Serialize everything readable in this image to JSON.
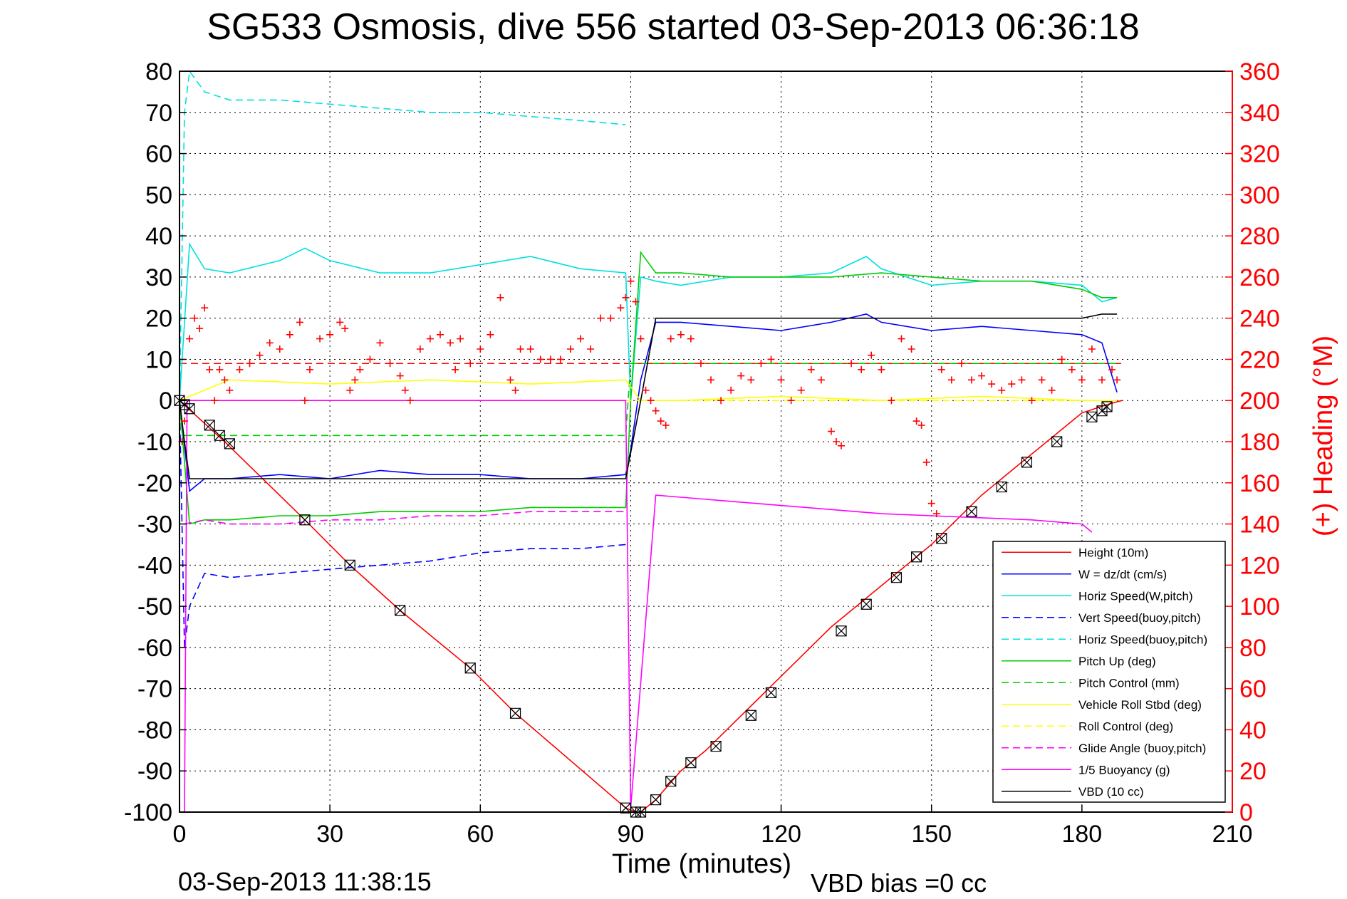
{
  "chart_data": {
    "type": "line",
    "title": "SG533 Osmosis, dive 556 started 03-Sep-2013 06:36:18",
    "xlabel": "Time (minutes)",
    "ylabel_right": "(+) Heading (°M)",
    "footer_left": "03-Sep-2013 11:38:15",
    "footer_right": "VBD bias =0 cc",
    "xlim": [
      0,
      210
    ],
    "ylim": [
      -100,
      80
    ],
    "ylim_right": [
      0,
      360
    ],
    "xticks": [
      "0",
      "30",
      "60",
      "90",
      "120",
      "150",
      "180",
      "210"
    ],
    "yticks_left": [
      "80",
      "70",
      "60",
      "50",
      "40",
      "30",
      "20",
      "10",
      "0",
      "-10",
      "-20",
      "-30",
      "-40",
      "-50",
      "-60",
      "-70",
      "-80",
      "-90",
      "-100"
    ],
    "yticks_right": [
      "360",
      "340",
      "320",
      "300",
      "280",
      "260",
      "240",
      "220",
      "200",
      "180",
      "160",
      "140",
      "120",
      "100",
      "80",
      "60",
      "40",
      "20",
      "0"
    ],
    "grid": true,
    "legend_position": "lower-right",
    "colors": {
      "red": "#ff0000",
      "blue": "#0000ff",
      "cyan": "#00e0e0",
      "green": "#00cc00",
      "yellow": "#ffff00",
      "magenta": "#ff00ff",
      "black": "#000000"
    },
    "series": [
      {
        "name": "Height (10m)",
        "color": "#ff0000",
        "style": "solid",
        "x": [
          0,
          9,
          25,
          34,
          44,
          58,
          67,
          89,
          91,
          92,
          95,
          100,
          105,
          110,
          115,
          120,
          130,
          140,
          150,
          160,
          170,
          180,
          185,
          188
        ],
        "y": [
          0,
          -10,
          -29,
          -40,
          -51,
          -65,
          -76,
          -99,
          -100,
          -100,
          -97,
          -90,
          -85,
          -79,
          -73,
          -67,
          -55,
          -45,
          -35,
          -23,
          -13,
          -3,
          -1,
          0
        ]
      },
      {
        "name": "W = dz/dt (cm/s)",
        "color": "#0000ff",
        "style": "solid",
        "x": [
          0,
          2,
          5,
          10,
          20,
          30,
          40,
          50,
          60,
          70,
          80,
          89,
          90,
          92,
          95,
          100,
          110,
          120,
          130,
          137,
          140,
          150,
          160,
          170,
          180,
          184,
          187
        ],
        "y": [
          0,
          -22,
          -19,
          -19,
          -18,
          -19,
          -17,
          -18,
          -18,
          -19,
          -19,
          -18,
          -12,
          5,
          19,
          19,
          18,
          17,
          19,
          21,
          19,
          17,
          18,
          17,
          16,
          14,
          2
        ]
      },
      {
        "name": "Horiz Speed(W,pitch)",
        "color": "#00e0e0",
        "style": "solid",
        "x": [
          0,
          2,
          5,
          10,
          20,
          25,
          30,
          40,
          50,
          60,
          70,
          80,
          89,
          90,
          92,
          95,
          100,
          110,
          120,
          130,
          137,
          140,
          150,
          160,
          170,
          180,
          184,
          187
        ],
        "y": [
          0,
          38,
          32,
          31,
          34,
          37,
          34,
          31,
          31,
          33,
          35,
          32,
          31,
          0,
          30,
          29,
          28,
          30,
          30,
          31,
          35,
          32,
          28,
          29,
          29,
          28,
          24,
          25
        ]
      },
      {
        "name": "Vert Speed(buoy,pitch)",
        "color": "#0000ff",
        "style": "dashed",
        "x": [
          0,
          1,
          2,
          5,
          10,
          20,
          30,
          40,
          50,
          60,
          70,
          80,
          89
        ],
        "y": [
          0,
          -60,
          -50,
          -42,
          -43,
          -42,
          -41,
          -40,
          -39,
          -37,
          -36,
          -36,
          -35
        ]
      },
      {
        "name": "Horiz Speed(buoy,pitch)",
        "color": "#00e0e0",
        "style": "dashed",
        "x": [
          0,
          1,
          2,
          5,
          10,
          20,
          30,
          40,
          50,
          60,
          70,
          80,
          89
        ],
        "y": [
          0,
          70,
          80,
          75,
          73,
          73,
          72,
          71,
          70,
          70,
          69,
          68,
          67
        ]
      },
      {
        "name": "Pitch Up (deg)",
        "color": "#00cc00",
        "style": "solid",
        "x": [
          0,
          2,
          5,
          10,
          20,
          30,
          40,
          50,
          60,
          70,
          80,
          89,
          90,
          92,
          95,
          100,
          110,
          120,
          130,
          140,
          150,
          160,
          170,
          180,
          184,
          187
        ],
        "y": [
          0,
          -30,
          -29,
          -29,
          -28,
          -28,
          -27,
          -27,
          -27,
          -26,
          -26,
          -26,
          0,
          36,
          31,
          31,
          30,
          30,
          30,
          31,
          30,
          29,
          29,
          27,
          25,
          25
        ]
      },
      {
        "name": "Pitch Control (mm)",
        "color": "#00cc00",
        "style": "dashed",
        "x": [
          1,
          89,
          90,
          187
        ],
        "y": [
          -8.5,
          -8.5,
          9,
          9
        ]
      },
      {
        "name": "Vehicle Roll Stbd (deg)",
        "color": "#ffff00",
        "style": "solid",
        "x": [
          0,
          10,
          30,
          50,
          70,
          89,
          92,
          100,
          120,
          140,
          160,
          180,
          187
        ],
        "y": [
          0,
          5,
          4,
          5,
          4,
          5,
          0,
          0,
          1,
          0,
          1,
          0,
          0
        ]
      },
      {
        "name": "Roll Control (deg)",
        "color": "#ffff00",
        "style": "dashed",
        "x": [
          0,
          89,
          92,
          187
        ],
        "y": [
          0,
          0,
          0,
          0
        ]
      },
      {
        "name": "Glide Angle (buoy,pitch)",
        "color": "#ff00ff",
        "style": "dashed",
        "x": [
          1,
          5,
          10,
          20,
          30,
          40,
          50,
          60,
          70,
          80,
          89
        ],
        "y": [
          -30,
          -29,
          -30,
          -30,
          -29,
          -29,
          -28,
          -28,
          -27,
          -27,
          -27
        ]
      },
      {
        "name": "1/5 Buoyancy (g)",
        "color": "#ff00ff",
        "style": "solid",
        "x": [
          1,
          1.5,
          89,
          90,
          95,
          100,
          110,
          120,
          130,
          140,
          150,
          160,
          170,
          180,
          182
        ],
        "y": [
          -100,
          0,
          0,
          -99,
          -23,
          -23.5,
          -24.5,
          -25.5,
          -26.5,
          -27.5,
          -28,
          -28.5,
          -29,
          -30,
          -32
        ]
      },
      {
        "name": "VBD (10 cc)",
        "color": "#000000",
        "style": "solid",
        "x": [
          0,
          1,
          2,
          10,
          30,
          50,
          70,
          89,
          92,
          95,
          100,
          120,
          140,
          160,
          180,
          184,
          187
        ],
        "y": [
          0,
          -10,
          -19,
          -19,
          -19,
          -19,
          -19,
          -19,
          0,
          20,
          20,
          20,
          20,
          20,
          20,
          21,
          21
        ]
      }
    ],
    "heading_series": {
      "name": "Heading (°M)",
      "color": "#ff0000",
      "marker": "+",
      "axis": "right",
      "x": [
        0.5,
        1,
        2,
        3,
        4,
        5,
        6,
        7,
        8,
        9,
        10,
        12,
        14,
        16,
        18,
        20,
        22,
        24,
        25,
        26,
        28,
        30,
        32,
        33,
        34,
        35,
        36,
        38,
        40,
        42,
        44,
        45,
        46,
        48,
        50,
        52,
        54,
        55,
        56,
        58,
        60,
        62,
        64,
        66,
        67,
        68,
        70,
        72,
        74,
        76,
        78,
        80,
        82,
        84,
        86,
        88,
        89,
        90,
        91,
        92,
        93,
        94,
        95,
        96,
        97,
        98,
        100,
        102,
        104,
        106,
        108,
        110,
        112,
        114,
        116,
        118,
        120,
        122,
        124,
        126,
        128,
        130,
        131,
        132,
        134,
        136,
        138,
        140,
        142,
        144,
        146,
        147,
        148,
        149,
        150,
        151,
        152,
        154,
        156,
        158,
        160,
        162,
        164,
        166,
        168,
        170,
        172,
        174,
        176,
        178,
        180,
        182,
        184,
        186,
        187
      ],
      "y": [
        180,
        190,
        230,
        240,
        235,
        245,
        215,
        200,
        215,
        210,
        205,
        215,
        218,
        222,
        228,
        225,
        232,
        238,
        200,
        215,
        230,
        232,
        238,
        235,
        205,
        210,
        215,
        220,
        228,
        218,
        212,
        205,
        200,
        225,
        230,
        232,
        228,
        215,
        230,
        218,
        225,
        232,
        250,
        210,
        205,
        225,
        225,
        220,
        220,
        220,
        225,
        230,
        225,
        240,
        240,
        245,
        250,
        258,
        248,
        230,
        205,
        200,
        195,
        190,
        188,
        230,
        232,
        230,
        218,
        210,
        200,
        205,
        212,
        210,
        218,
        220,
        210,
        200,
        205,
        215,
        210,
        185,
        180,
        178,
        218,
        215,
        222,
        215,
        200,
        230,
        225,
        190,
        188,
        170,
        150,
        145,
        215,
        210,
        218,
        210,
        212,
        208,
        205,
        208,
        210,
        200,
        210,
        205,
        220,
        215,
        210,
        225,
        210,
        215,
        210
      ]
    },
    "heading_mean_right": 218,
    "vbd_mean_left": 8.5,
    "height_markers": {
      "x": [
        0,
        1,
        2,
        6,
        8,
        10,
        25,
        34,
        44,
        58,
        67,
        89,
        91,
        92,
        95,
        98,
        102,
        107,
        114,
        118,
        132,
        137,
        143,
        147,
        152,
        158,
        164,
        169,
        175,
        182,
        184,
        185
      ],
      "y": [
        0,
        -1,
        -2,
        -6,
        -8.5,
        -10.5,
        -29,
        -40,
        -51,
        -65,
        -76,
        -99,
        -100,
        -100,
        -97,
        -92.5,
        -88,
        -84,
        -76.5,
        -71,
        -56,
        -49.5,
        -43,
        -38,
        -33.5,
        -27,
        -21,
        -15,
        -10,
        -4,
        -2.5,
        -1.5
      ]
    },
    "legend": [
      {
        "label": "Height (10m)",
        "color": "#ff0000",
        "style": "solid"
      },
      {
        "label": "W = dz/dt (cm/s)",
        "color": "#0000ff",
        "style": "solid"
      },
      {
        "label": "Horiz Speed(W,pitch)",
        "color": "#00e0e0",
        "style": "solid"
      },
      {
        "label": "Vert Speed(buoy,pitch)",
        "color": "#0000ff",
        "style": "dashed"
      },
      {
        "label": "Horiz Speed(buoy,pitch)",
        "color": "#00e0e0",
        "style": "dashed"
      },
      {
        "label": "Pitch Up (deg)",
        "color": "#00cc00",
        "style": "solid"
      },
      {
        "label": "Pitch Control (mm)",
        "color": "#00cc00",
        "style": "dashed"
      },
      {
        "label": "Vehicle Roll Stbd (deg)",
        "color": "#ffff00",
        "style": "solid"
      },
      {
        "label": "Roll Control (deg)",
        "color": "#ffff00",
        "style": "dashed"
      },
      {
        "label": "Glide Angle (buoy,pitch)",
        "color": "#ff00ff",
        "style": "dashed"
      },
      {
        "label": "1/5 Buoyancy (g)",
        "color": "#ff00ff",
        "style": "solid"
      },
      {
        "label": "VBD (10 cc)",
        "color": "#000000",
        "style": "solid"
      }
    ]
  }
}
